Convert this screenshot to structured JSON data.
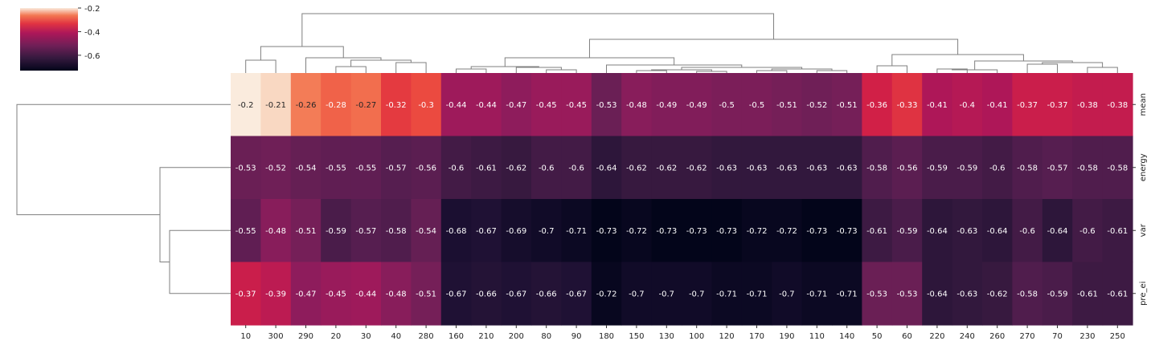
{
  "chart_data": {
    "type": "heatmap",
    "subtype": "clustermap",
    "columns": [
      "10",
      "300",
      "290",
      "20",
      "30",
      "40",
      "280",
      "160",
      "210",
      "200",
      "80",
      "90",
      "180",
      "150",
      "130",
      "100",
      "120",
      "170",
      "190",
      "110",
      "140",
      "50",
      "60",
      "220",
      "240",
      "260",
      "270",
      "70",
      "230",
      "250"
    ],
    "rows": [
      "mean",
      "energy",
      "var",
      "pre_ei"
    ],
    "values": [
      [
        -0.2,
        -0.21,
        -0.26,
        -0.28,
        -0.27,
        -0.32,
        -0.3,
        -0.44,
        -0.44,
        -0.47,
        -0.45,
        -0.45,
        -0.53,
        -0.48,
        -0.49,
        -0.49,
        -0.5,
        -0.5,
        -0.51,
        -0.52,
        -0.51,
        -0.36,
        -0.33,
        -0.41,
        -0.4,
        -0.41,
        -0.37,
        -0.37,
        -0.38,
        -0.38
      ],
      [
        -0.53,
        -0.52,
        -0.54,
        -0.55,
        -0.55,
        -0.57,
        -0.56,
        -0.6,
        -0.61,
        -0.62,
        -0.6,
        -0.6,
        -0.64,
        -0.62,
        -0.62,
        -0.62,
        -0.63,
        -0.63,
        -0.63,
        -0.63,
        -0.63,
        -0.58,
        -0.56,
        -0.59,
        -0.59,
        -0.6,
        -0.58,
        -0.57,
        -0.58,
        -0.58
      ],
      [
        -0.55,
        -0.48,
        -0.51,
        -0.59,
        -0.57,
        -0.58,
        -0.54,
        -0.68,
        -0.67,
        -0.69,
        -0.7,
        -0.71,
        -0.73,
        -0.72,
        -0.73,
        -0.73,
        -0.73,
        -0.72,
        -0.72,
        -0.73,
        -0.73,
        -0.61,
        -0.59,
        -0.64,
        -0.63,
        -0.64,
        -0.6,
        -0.64,
        -0.6,
        -0.61
      ],
      [
        -0.37,
        -0.39,
        -0.47,
        -0.45,
        -0.44,
        -0.48,
        -0.51,
        -0.67,
        -0.66,
        -0.67,
        -0.66,
        -0.67,
        -0.72,
        -0.7,
        -0.7,
        -0.7,
        -0.71,
        -0.71,
        -0.7,
        -0.71,
        -0.71,
        -0.53,
        -0.53,
        -0.64,
        -0.63,
        -0.62,
        -0.58,
        -0.59,
        -0.61,
        -0.61
      ]
    ],
    "colorbar": {
      "vmin": -0.73,
      "vmax": -0.2,
      "ticks": [
        "-0.2",
        "-0.4",
        "-0.6"
      ],
      "tick_values": [
        -0.2,
        -0.4,
        -0.6
      ],
      "colormap": "rocket",
      "placement": "top-left"
    },
    "annotations": true,
    "col_dendrogram": true,
    "row_dendrogram": true
  }
}
